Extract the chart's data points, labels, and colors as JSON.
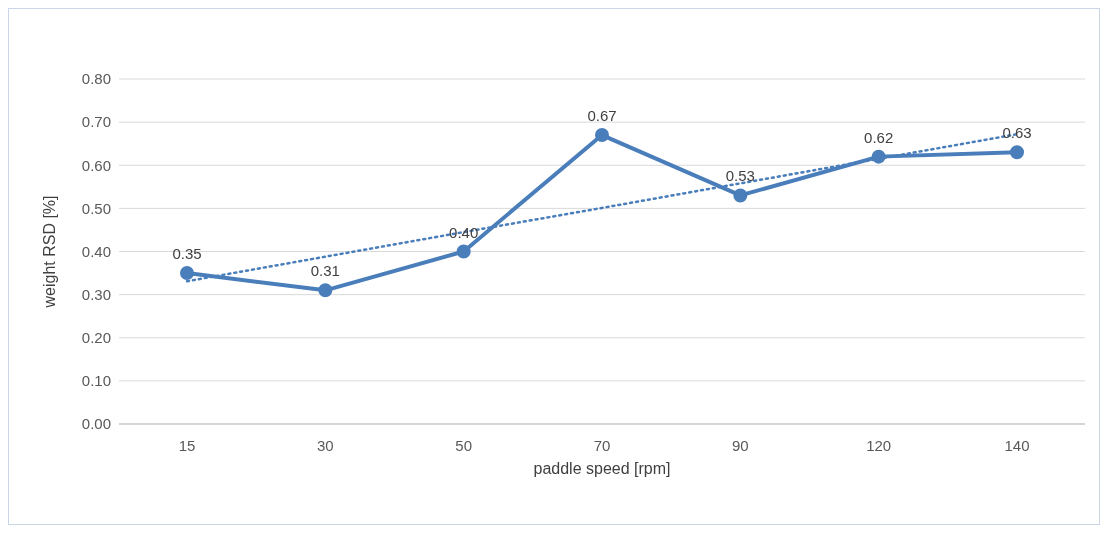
{
  "chart_data": {
    "type": "line",
    "xlabel": "paddle speed [rpm]",
    "ylabel": "weight RSD [%]",
    "categories": [
      "15",
      "30",
      "50",
      "70",
      "90",
      "120",
      "140"
    ],
    "series": [
      {
        "color": "#4a7ebb",
        "values": [
          0.35,
          0.31,
          0.4,
          0.67,
          0.53,
          0.62,
          0.63
        ],
        "value_labels": [
          "0.35",
          "0.31",
          "0.40",
          "0.67",
          "0.53",
          "0.62",
          "0.63"
        ],
        "marker": "circle",
        "line_style": "solid"
      },
      {
        "type": "line",
        "color": "#4a7ebb",
        "values": [
          0.331,
          0.388,
          0.445,
          0.501,
          0.558,
          0.615,
          0.672
        ],
        "marker": "none",
        "line_style": "dotted"
      }
    ],
    "ylim": [
      0,
      0.8
    ],
    "yticks": [
      {
        "value": 0,
        "label": "0.00"
      },
      {
        "value": 0.1,
        "label": "0.10"
      },
      {
        "value": 0.2,
        "label": "0.20"
      },
      {
        "value": 0.3,
        "label": "0.30"
      },
      {
        "value": 0.4,
        "label": "0.40"
      },
      {
        "value": 0.5,
        "label": "0.50"
      },
      {
        "value": 0.6,
        "label": "0.60"
      },
      {
        "value": 0.7,
        "label": "0.70"
      },
      {
        "value": 0.8,
        "label": "0.80"
      }
    ],
    "grid": "y"
  }
}
